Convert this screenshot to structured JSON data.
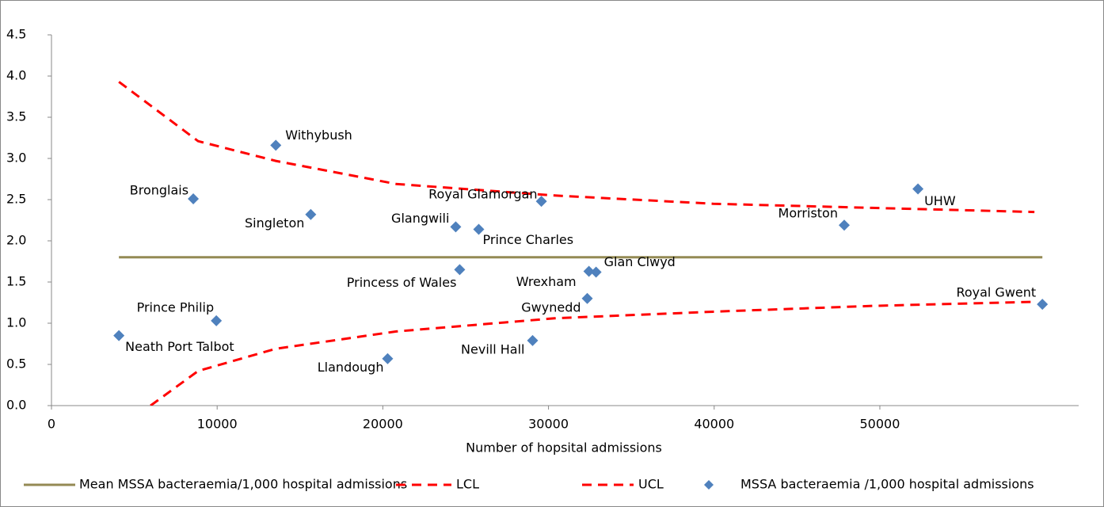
{
  "chart_data": {
    "type": "scatter",
    "x_label": "Number of hopsital admissions",
    "xlim": [
      0,
      62000
    ],
    "xticks": [
      0,
      10000,
      20000,
      30000,
      40000,
      50000
    ],
    "ylim": [
      0,
      4.5
    ],
    "yticks": [
      {
        "value": 0,
        "label": "0.0"
      },
      {
        "value": 0.5,
        "label": "0.5"
      },
      {
        "value": 1,
        "label": "1.0"
      },
      {
        "value": 1.5,
        "label": "1.5"
      },
      {
        "value": 2,
        "label": "2.0"
      },
      {
        "value": 2.5,
        "label": "2.5"
      },
      {
        "value": 3,
        "label": "3.0"
      },
      {
        "value": 3.5,
        "label": "3.5"
      },
      {
        "value": 4,
        "label": "4.0"
      },
      {
        "value": 4.5,
        "label": "4.5"
      }
    ],
    "series": [
      {
        "name": "Mean MSSA bacteraemia/1,000 hospital admissions",
        "type": "line",
        "dash": false,
        "color": "#948a54",
        "x": [
          4070,
          59810
        ],
        "values": [
          1.8,
          1.8
        ]
      },
      {
        "name": "LCL",
        "type": "line",
        "dash": true,
        "color": "#ff0000",
        "x": [
          5980,
          8850,
          13540,
          20810,
          30380,
          39950,
          49520,
          59330
        ],
        "values": [
          0,
          0.42,
          0.69,
          0.9,
          1.06,
          1.14,
          1.21,
          1.26
        ]
      },
      {
        "name": "UCL",
        "type": "line",
        "dash": true,
        "color": "#ff0000",
        "x": [
          4070,
          8850,
          13540,
          20810,
          30380,
          39950,
          49520,
          59330
        ],
        "values": [
          3.93,
          3.21,
          2.97,
          2.69,
          2.55,
          2.45,
          2.4,
          2.35
        ]
      },
      {
        "name": "MSSA bacteraemia /1,000 hospital admissions",
        "type": "scatter",
        "color": "#4f81bd",
        "labels": [
          "Withybush",
          "Bronglais",
          "Singleton",
          "Royal Glamorgan",
          "Glangwili",
          "Prince Charles",
          "Morriston",
          "UHW",
          "Princess of Wales",
          "Wrexham",
          "Glan Clwyd",
          "Gwynedd",
          "Royal Gwent",
          "Prince Philip",
          "Neath Port Talbot",
          "Nevill Hall",
          "Llandough"
        ],
        "x": [
          13540,
          8560,
          15650,
          29570,
          24400,
          25790,
          47850,
          52300,
          24640,
          32440,
          32870,
          32340,
          59810,
          9950,
          4070,
          29040,
          20290
        ],
        "values": [
          3.16,
          2.51,
          2.32,
          2.48,
          2.17,
          2.14,
          2.19,
          2.63,
          1.65,
          1.63,
          1.62,
          1.3,
          1.23,
          1.03,
          0.85,
          0.79,
          0.57
        ]
      }
    ]
  }
}
